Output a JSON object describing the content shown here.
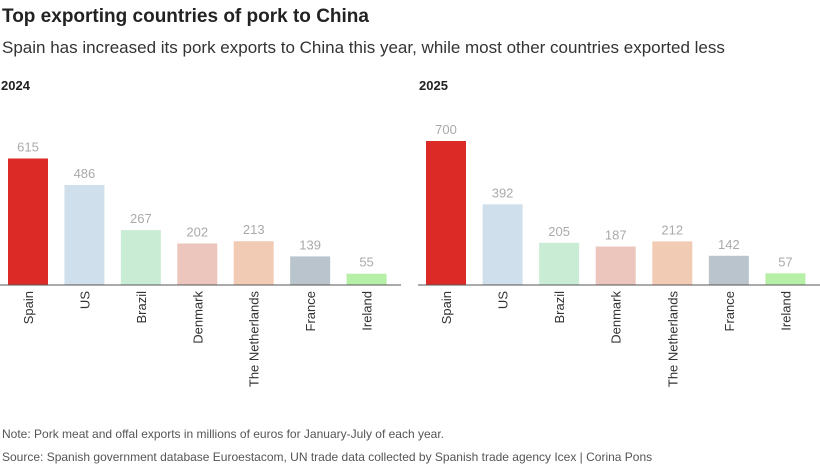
{
  "header": {
    "title": "Top exporting countries of pork to China",
    "subtitle": "Spain has increased its pork exports to China this year, while most other countries exported less"
  },
  "footer": {
    "note": "Note: Pork meat and offal exports in millions of euros for January-July of each year.",
    "source": "Source: Spanish government database Euroestacom, UN trade data collected by Spanish trade agency Icex | Corina Pons"
  },
  "colors": {
    "Spain": "#dc2b27",
    "US": "#cfe0ec",
    "Brazil": "#c9ecd4",
    "Denmark": "#ecc5bd",
    "The Netherlands": "#f2cbb5",
    "France": "#b9c4cc",
    "Ireland": "#b6f0a6"
  },
  "chart_data": [
    {
      "type": "bar",
      "title": "2024",
      "categories": [
        "Spain",
        "US",
        "Brazil",
        "Denmark",
        "The Netherlands",
        "France",
        "Ireland"
      ],
      "values": [
        615,
        486,
        267,
        202,
        213,
        139,
        55
      ],
      "ylim": [
        0,
        700
      ],
      "grid": false
    },
    {
      "type": "bar",
      "title": "2025",
      "categories": [
        "Spain",
        "US",
        "Brazil",
        "Denmark",
        "The Netherlands",
        "France",
        "Ireland"
      ],
      "values": [
        700,
        392,
        205,
        187,
        212,
        142,
        57
      ],
      "ylim": [
        0,
        700
      ],
      "grid": false
    }
  ]
}
